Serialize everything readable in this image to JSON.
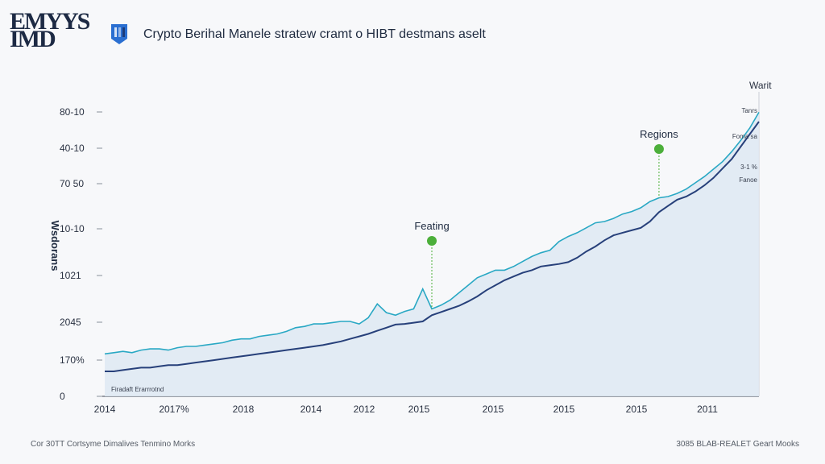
{
  "header": {
    "logo_line1": "EMYYS",
    "logo_line2": "IMD",
    "title": "Crypto Berihal Manele stratew cramt o HIBT destmans aselt"
  },
  "footer": {
    "left": "Cor 30TT Cortsyme Dimalives Tenmino Morks",
    "right": "3085 BLAB-REALET Geart Mooks"
  },
  "colors": {
    "accent_line": "#29a8c4",
    "dark_line": "#27407a",
    "fill": "#dfe9f3",
    "marker": "#4caf3a"
  },
  "chart_data": {
    "type": "line",
    "ylabel": "Wsdorans",
    "y_ticks": [
      "80-10",
      "40-10",
      "70 50",
      "10-10",
      "1021",
      "2045",
      "170%",
      "0"
    ],
    "x_ticks": [
      "2014",
      "2017%",
      "2018",
      "2014",
      "2012",
      "2015",
      "2015",
      "2015",
      "2015",
      "2011"
    ],
    "corner_label": "Warit",
    "annotations": [
      {
        "label": "Feating",
        "x_index": 36
      },
      {
        "label": "Regions",
        "x_index": 61
      }
    ],
    "right_labels": [
      "Tanrs",
      "Foma sa",
      "3-1 %",
      "Fanoe"
    ],
    "bottom_note": "Firadaft Erarrrotnd",
    "series": [
      {
        "values": [
          100,
          100,
          102,
          104,
          106,
          106,
          108,
          110,
          110,
          112,
          114,
          116,
          118,
          120,
          122,
          124,
          126,
          128,
          130,
          132,
          134,
          136,
          138,
          140,
          142,
          145,
          148,
          152,
          156,
          160,
          165,
          170,
          175,
          176,
          178,
          180,
          190,
          195,
          200,
          205,
          212,
          220,
          230,
          238,
          246,
          252,
          258,
          262,
          268,
          270,
          272,
          275,
          282,
          292,
          300,
          310,
          318,
          322,
          326,
          330,
          340,
          355,
          365,
          375,
          380,
          388,
          398,
          410,
          425,
          440,
          460,
          480,
          500
        ]
      },
      {
        "values": [
          128,
          130,
          132,
          130,
          134,
          136,
          136,
          134,
          138,
          140,
          140,
          142,
          144,
          146,
          150,
          152,
          152,
          156,
          158,
          160,
          164,
          170,
          172,
          176,
          176,
          178,
          180,
          180,
          176,
          186,
          208,
          194,
          190,
          196,
          200,
          232,
          200,
          206,
          214,
          226,
          238,
          250,
          256,
          262,
          262,
          268,
          276,
          284,
          290,
          294,
          308,
          316,
          322,
          330,
          338,
          340,
          345,
          352,
          356,
          362,
          372,
          378,
          380,
          385,
          392,
          402,
          412,
          424,
          436,
          452,
          470,
          490,
          515
        ]
      }
    ]
  }
}
